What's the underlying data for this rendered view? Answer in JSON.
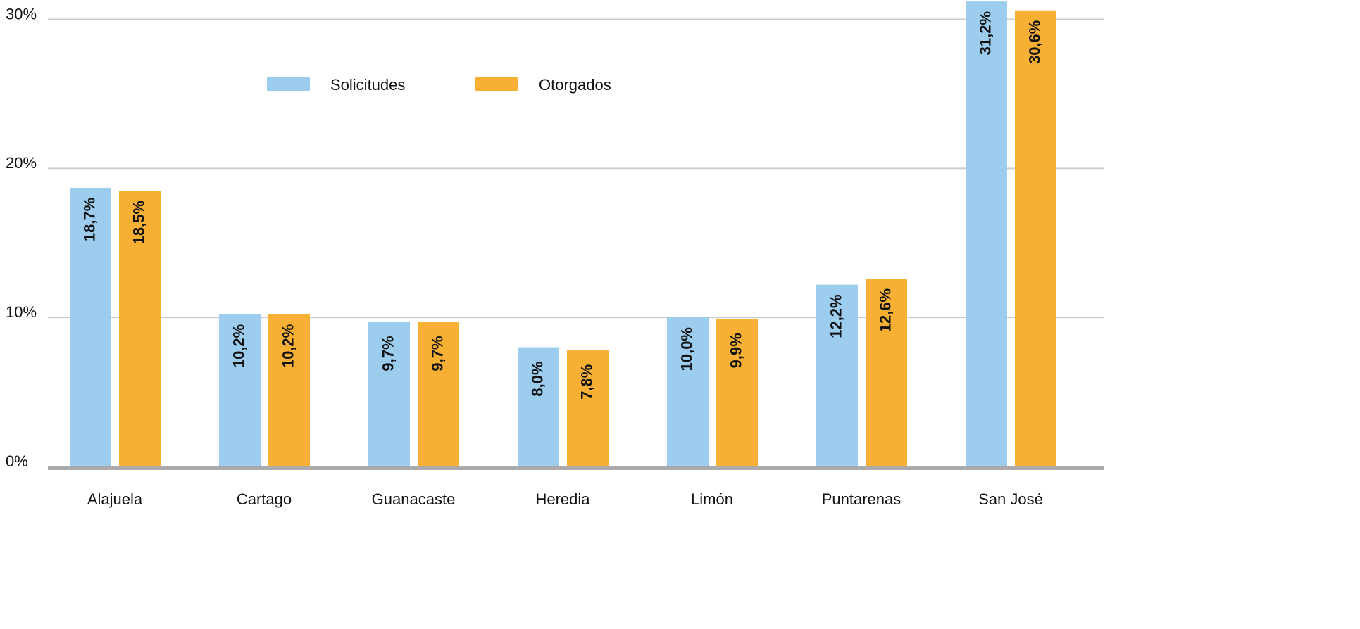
{
  "chart_data": {
    "type": "bar",
    "categories": [
      "Alajuela",
      "Cartago",
      "Guanacaste",
      "Heredia",
      "Limón",
      "Puntarenas",
      "San José"
    ],
    "series": [
      {
        "name": "Solicitudes",
        "color": "#9dcdee",
        "values": [
          18.7,
          10.2,
          9.7,
          8.0,
          10.0,
          12.2,
          31.2
        ],
        "value_labels": [
          "18,7%",
          "10,2%",
          "9,7%",
          "8,0%",
          "10,0%",
          "12,2%",
          "31,2%"
        ]
      },
      {
        "name": "Otorgados",
        "color": "#f7b034",
        "values": [
          18.5,
          10.2,
          9.7,
          7.8,
          9.9,
          12.6,
          30.6
        ],
        "value_labels": [
          "18,5%",
          "10,2%",
          "9,7%",
          "7,8%",
          "9,9%",
          "12,6%",
          "30,6%"
        ]
      }
    ],
    "ylim": [
      0,
      31.3
    ],
    "yticks": [
      {
        "value": 0,
        "label": "0%"
      },
      {
        "value": 10,
        "label": "10%"
      },
      {
        "value": 20,
        "label": "20%"
      },
      {
        "value": 30,
        "label": "30%"
      }
    ],
    "grid": true
  }
}
